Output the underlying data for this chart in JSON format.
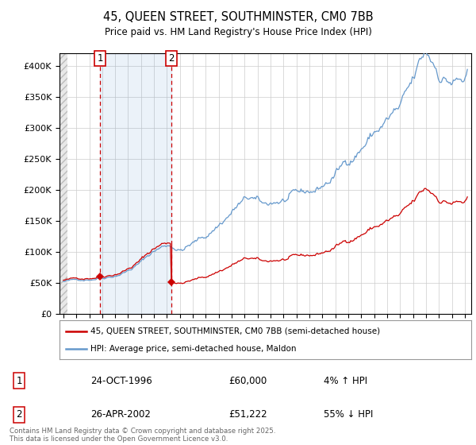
{
  "title": "45, QUEEN STREET, SOUTHMINSTER, CM0 7BB",
  "subtitle": "Price paid vs. HM Land Registry's House Price Index (HPI)",
  "footer": "Contains HM Land Registry data © Crown copyright and database right 2025.\nThis data is licensed under the Open Government Licence v3.0.",
  "legend_line1": "45, QUEEN STREET, SOUTHMINSTER, CM0 7BB (semi-detached house)",
  "legend_line2": "HPI: Average price, semi-detached house, Maldon",
  "sale1_label": "1",
  "sale1_date": "24-OCT-1996",
  "sale1_price": "£60,000",
  "sale1_hpi": "4% ↑ HPI",
  "sale2_label": "2",
  "sale2_date": "26-APR-2002",
  "sale2_price": "£51,222",
  "sale2_hpi": "55% ↓ HPI",
  "sale_color": "#cc0000",
  "hpi_color": "#6699cc",
  "ylim": [
    0,
    420000
  ],
  "yticks": [
    0,
    50000,
    100000,
    150000,
    200000,
    250000,
    300000,
    350000,
    400000
  ],
  "sale1_year": 1996.83,
  "sale1_value": 60000,
  "sale2_year": 2002.33,
  "sale2_value": 51222,
  "xmin": 1994.0,
  "xmax": 2025.5,
  "xticks": [
    1994,
    1995,
    1996,
    1997,
    1998,
    1999,
    2000,
    2001,
    2002,
    2003,
    2004,
    2005,
    2006,
    2007,
    2008,
    2009,
    2010,
    2011,
    2012,
    2013,
    2014,
    2015,
    2016,
    2017,
    2018,
    2019,
    2020,
    2021,
    2022,
    2023,
    2024,
    2025
  ]
}
